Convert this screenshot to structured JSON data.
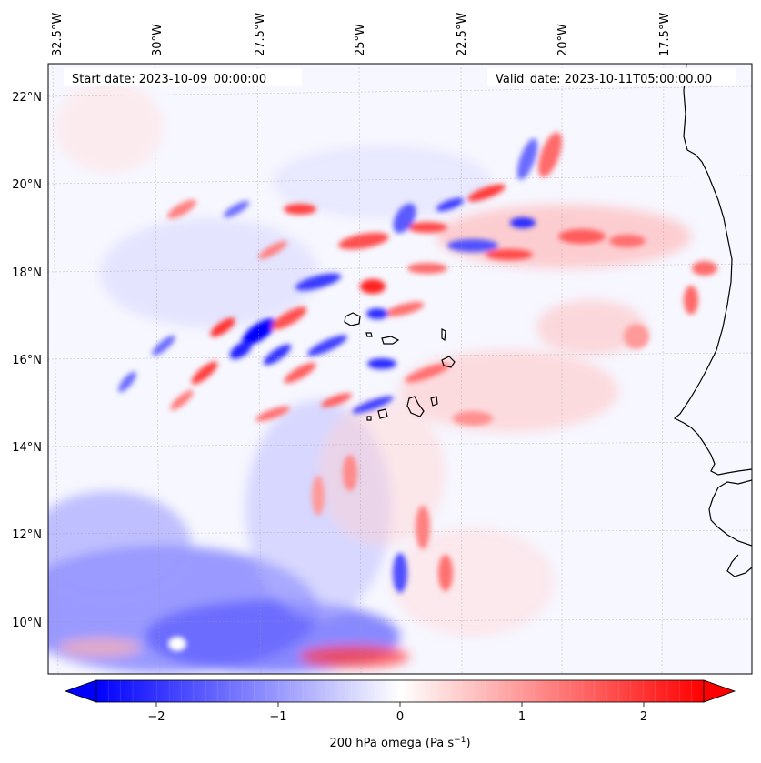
{
  "map": {
    "start_date_label": "Start date: 2023-10-09_00:00:00",
    "valid_date_label": "Valid_date: 2023-10-11T05:00:00.00",
    "longitude_labels": [
      "32.5°W",
      "30°W",
      "27.5°W",
      "25°W",
      "22.5°W",
      "20°W",
      "17.5°W"
    ],
    "latitude_labels": [
      "22°N",
      "20°N",
      "18°N",
      "16°N",
      "14°N",
      "12°N",
      "10°N"
    ],
    "field": "200 hPa omega",
    "units": "Pa s⁻¹"
  },
  "colorbar": {
    "label_text": "200 hPa omega (Pa s",
    "label_exp": "−1",
    "label_close": ")",
    "tick_labels": [
      "−2",
      "−1",
      "0",
      "1",
      "2"
    ],
    "range": [
      -2.6,
      2.6
    ],
    "ticks": [
      -2,
      -1,
      0,
      1,
      2
    ],
    "extend": "both",
    "colors": {
      "low": "#0000ff",
      "mid": "#ffffff",
      "high": "#ff0000"
    }
  }
}
